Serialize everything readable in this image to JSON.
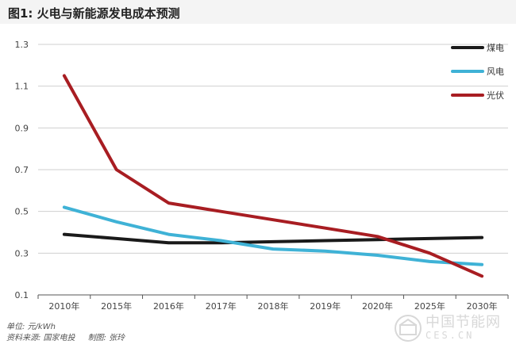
{
  "header": {
    "title": "图1: 火电与新能源发电成本预测"
  },
  "footnote": {
    "unit": "单位: 元/kWh",
    "source": "资料来源: 国家电投",
    "author": "制图: 张玲"
  },
  "watermark": {
    "name": "中国节能网",
    "domain": "CES.CN"
  },
  "colors": {
    "coal": "#1a1a1a",
    "wind": "#3fb2d6",
    "solar": "#a81d22",
    "grid": "#cfcfcf",
    "axis": "#555555"
  },
  "chart_data": {
    "type": "line",
    "title": "图1: 火电与新能源发电成本预测",
    "xlabel": "",
    "ylabel": "",
    "categories": [
      "2010年",
      "2015年",
      "2016年",
      "2017年",
      "2018年",
      "2019年",
      "2020年",
      "2025年",
      "2030年"
    ],
    "ylim": [
      0.1,
      1.3
    ],
    "yticks": [
      0.1,
      0.3,
      0.5,
      0.7,
      0.9,
      1.1,
      1.3
    ],
    "grid": "horizontal",
    "legend_position": "top-right",
    "series": [
      {
        "name": "煤电",
        "color": "#1a1a1a",
        "values": [
          0.39,
          0.37,
          0.35,
          0.35,
          0.355,
          0.36,
          0.365,
          0.37,
          0.375
        ]
      },
      {
        "name": "风电",
        "color": "#3fb2d6",
        "values": [
          0.52,
          0.45,
          0.39,
          0.36,
          0.32,
          0.31,
          0.29,
          0.26,
          0.245
        ]
      },
      {
        "name": "光伏",
        "color": "#a81d22",
        "values": [
          1.15,
          0.7,
          0.54,
          0.5,
          0.46,
          0.42,
          0.38,
          0.3,
          0.19
        ]
      }
    ]
  }
}
